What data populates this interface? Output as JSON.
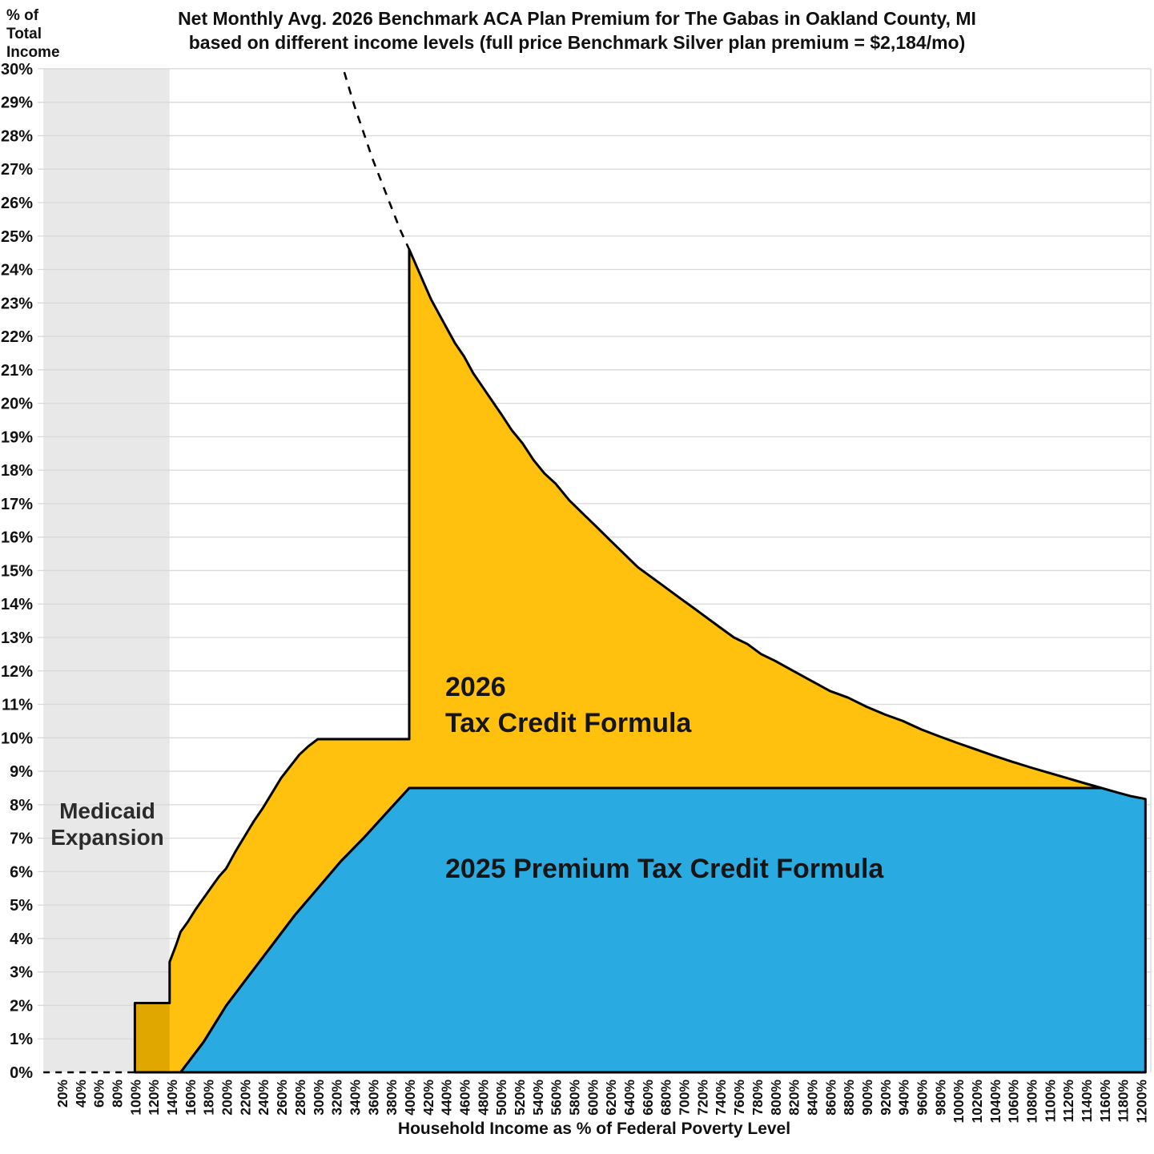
{
  "title": {
    "line1": "Net Monthly Avg. 2026 Benchmark ACA Plan Premium for The Gabas in Oakland County, MI",
    "line2": "based on different income levels (full price Benchmark Silver plan premium = $2,184/mo)"
  },
  "y_axis": {
    "header_line1": "% of",
    "header_line2": "Total",
    "header_line3": "Income",
    "tick_suffix": "%",
    "ticks_pct": [
      0,
      1,
      2,
      3,
      4,
      5,
      6,
      7,
      8,
      9,
      10,
      11,
      12,
      13,
      14,
      15,
      16,
      17,
      18,
      19,
      20,
      21,
      22,
      23,
      24,
      25,
      26,
      27,
      28,
      29,
      30
    ]
  },
  "x_axis": {
    "title": "Household Income as % of Federal Poverty Level",
    "tick_suffix": "%",
    "ticks_fpl": [
      20,
      40,
      60,
      80,
      100,
      120,
      140,
      160,
      180,
      200,
      220,
      240,
      260,
      280,
      300,
      320,
      340,
      360,
      380,
      400,
      420,
      440,
      460,
      480,
      500,
      520,
      540,
      560,
      580,
      600,
      620,
      640,
      660,
      680,
      700,
      720,
      740,
      760,
      780,
      800,
      820,
      840,
      860,
      880,
      900,
      920,
      940,
      960,
      980,
      1000,
      1020,
      1040,
      1060,
      1080,
      1100,
      1120,
      1140,
      1160,
      1180,
      1200
    ]
  },
  "regions": {
    "medicaid": {
      "label_line1": "Medicaid",
      "label_line2": "Expansion",
      "x_start_fpl": 0,
      "x_end_fpl": 138,
      "fill": "#E8E8E8"
    }
  },
  "chart_data": {
    "type": "area",
    "title": "Net Monthly Avg. 2026 Benchmark ACA Plan Premium for The Gabas in Oakland County, MI based on different income levels (full price Benchmark Silver plan premium = $2,184/mo)",
    "xlabel": "Household Income as % of Federal Poverty Level",
    "ylabel": "% of Total Income",
    "xlim_fpl": [
      0,
      1205
    ],
    "ylim_pct": [
      0,
      30
    ],
    "grid": "horizontal",
    "gridline_color": "#D9D9D9",
    "outline_color": "#000000",
    "series": [
      {
        "name": "2026 Tax Credit Formula",
        "label_line1": "2026",
        "label_line2": "Tax Credit Formula",
        "color": "#FFC10E",
        "medicaid_overlap_color": "#DFA700",
        "medicaid_overlap_region": {
          "x_start_fpl": 100,
          "x_end_fpl": 138,
          "top_pct": 2.07
        },
        "flat_cap_pct_300_400": 9.96,
        "spike_peak_pct_at_400": 24.6,
        "upper_boundary_fpl_pct": [
          [
            100,
            0
          ],
          [
            100,
            2.07
          ],
          [
            138,
            2.07
          ],
          [
            138,
            3.3
          ],
          [
            145,
            3.8
          ],
          [
            150,
            4.2
          ],
          [
            158,
            4.5
          ],
          [
            166,
            4.85
          ],
          [
            175,
            5.2
          ],
          [
            184,
            5.55
          ],
          [
            192,
            5.85
          ],
          [
            200,
            6.1
          ],
          [
            210,
            6.6
          ],
          [
            220,
            7.05
          ],
          [
            230,
            7.5
          ],
          [
            240,
            7.9
          ],
          [
            250,
            8.35
          ],
          [
            260,
            8.8
          ],
          [
            270,
            9.15
          ],
          [
            280,
            9.5
          ],
          [
            290,
            9.75
          ],
          [
            300,
            9.96
          ],
          [
            400,
            9.96
          ],
          [
            400,
            24.6
          ],
          [
            408,
            24.1
          ],
          [
            416,
            23.6
          ],
          [
            424,
            23.1
          ],
          [
            432,
            22.7
          ],
          [
            440,
            22.3
          ],
          [
            450,
            21.8
          ],
          [
            460,
            21.4
          ],
          [
            470,
            20.9
          ],
          [
            480,
            20.5
          ],
          [
            490,
            20.1
          ],
          [
            500,
            19.7
          ],
          [
            512,
            19.2
          ],
          [
            524,
            18.8
          ],
          [
            536,
            18.3
          ],
          [
            548,
            17.9
          ],
          [
            560,
            17.6
          ],
          [
            575,
            17.1
          ],
          [
            590,
            16.7
          ],
          [
            605,
            16.3
          ],
          [
            620,
            15.9
          ],
          [
            635,
            15.5
          ],
          [
            650,
            15.1
          ],
          [
            665,
            14.8
          ],
          [
            680,
            14.5
          ],
          [
            695,
            14.2
          ],
          [
            710,
            13.9
          ],
          [
            725,
            13.6
          ],
          [
            740,
            13.3
          ],
          [
            755,
            13.0
          ],
          [
            770,
            12.8
          ],
          [
            785,
            12.5
          ],
          [
            800,
            12.3
          ],
          [
            820,
            12.0
          ],
          [
            840,
            11.7
          ],
          [
            860,
            11.4
          ],
          [
            880,
            11.2
          ],
          [
            900,
            10.93
          ],
          [
            920,
            10.7
          ],
          [
            940,
            10.5
          ],
          [
            960,
            10.25
          ],
          [
            980,
            10.04
          ],
          [
            1000,
            9.84
          ],
          [
            1020,
            9.65
          ],
          [
            1040,
            9.46
          ],
          [
            1060,
            9.28
          ],
          [
            1080,
            9.11
          ],
          [
            1100,
            8.95
          ],
          [
            1120,
            8.79
          ],
          [
            1140,
            8.63
          ],
          [
            1157,
            8.5
          ]
        ],
        "lower_boundary_fpl_pct": [
          [
            100,
            0
          ],
          [
            150,
            0
          ],
          [
            175,
            0.9
          ],
          [
            200,
            2.0
          ],
          [
            225,
            2.9
          ],
          [
            250,
            3.8
          ],
          [
            275,
            4.7
          ],
          [
            300,
            5.5
          ],
          [
            325,
            6.3
          ],
          [
            350,
            7.0
          ],
          [
            375,
            7.75
          ],
          [
            400,
            8.5
          ],
          [
            1157,
            8.5
          ]
        ]
      },
      {
        "name": "2025 Premium Tax Credit Formula",
        "label": "2025 Premium Tax Credit Formula",
        "color": "#29ABE2",
        "flat_cap_pct_above_400": 8.5,
        "upper_boundary_fpl_pct": [
          [
            150,
            0
          ],
          [
            175,
            0.9
          ],
          [
            200,
            2.0
          ],
          [
            225,
            2.9
          ],
          [
            250,
            3.8
          ],
          [
            275,
            4.7
          ],
          [
            300,
            5.5
          ],
          [
            325,
            6.3
          ],
          [
            350,
            7.0
          ],
          [
            375,
            7.75
          ],
          [
            400,
            8.5
          ],
          [
            1157,
            8.5
          ],
          [
            1175,
            8.36
          ],
          [
            1190,
            8.25
          ],
          [
            1205,
            8.17
          ]
        ],
        "x_end_fpl": 1205
      }
    ],
    "full_price_dashed_extension_fpl_pct": [
      [
        329,
        29.9
      ],
      [
        340,
        28.9
      ],
      [
        350,
        28.1
      ],
      [
        360,
        27.3
      ],
      [
        370,
        26.6
      ],
      [
        380,
        25.9
      ],
      [
        390,
        25.2
      ],
      [
        400,
        24.6
      ]
    ],
    "zero_premium_dashed_axis_fpl": [
      0,
      100
    ]
  }
}
